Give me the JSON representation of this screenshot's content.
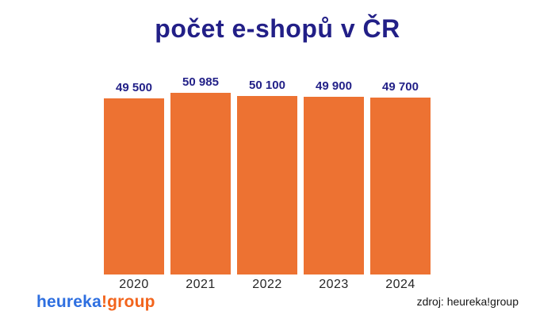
{
  "title": "počet e-shopů v ČR",
  "chart_data": {
    "type": "bar",
    "title": "počet e-shopů v ČR",
    "categories": [
      "2020",
      "2021",
      "2022",
      "2023",
      "2024"
    ],
    "values": [
      49500,
      50985,
      50100,
      49900,
      49700
    ],
    "value_labels": [
      "49 500",
      "50 985",
      "50 100",
      "49 900",
      "49 700"
    ],
    "xlabel": "",
    "ylabel": "",
    "ylim": [
      0,
      50985
    ],
    "grid": false,
    "legend": "none",
    "bar_color": "#ED7232",
    "value_label_color": "#232188",
    "title_color": "#221F87",
    "category_label_color": "#262626",
    "background_color": "#FFFFFF"
  },
  "footer": {
    "logo": {
      "part1": "heureka",
      "part2": "!group",
      "part1_color": "#2E6FE0",
      "part2_color": "#F2641C"
    },
    "source": "zdroj: heureka!group"
  }
}
